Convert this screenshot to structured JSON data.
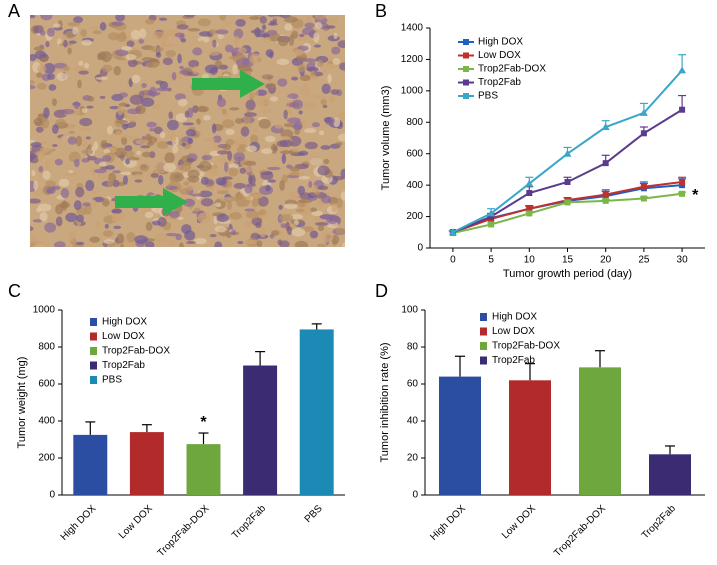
{
  "image_panel": {
    "panel": "A"
  },
  "chart_data": [
    {
      "panel": "B",
      "type": "line",
      "xlabel": "Tumor growth period (day)",
      "ylabel": "Tumor volume (mm3)",
      "x": [
        0,
        5,
        10,
        15,
        20,
        25,
        30
      ],
      "xlim": [
        -3,
        33
      ],
      "xticks": [
        0,
        5,
        10,
        15,
        20,
        25,
        30
      ],
      "ylim": [
        0,
        1400
      ],
      "yticks": [
        0,
        200,
        400,
        600,
        800,
        1000,
        1200,
        1400
      ],
      "annotation": "*",
      "series": [
        {
          "name": "High DOX",
          "color": "#1f5fbf",
          "marker": "square",
          "values": [
            100,
            190,
            250,
            300,
            330,
            380,
            400
          ],
          "errors": [
            10,
            20,
            20,
            20,
            40,
            40,
            40
          ]
        },
        {
          "name": "Low DOX",
          "color": "#c0302f",
          "marker": "square",
          "values": [
            100,
            185,
            250,
            305,
            340,
            390,
            420
          ],
          "errors": [
            10,
            15,
            15,
            15,
            20,
            20,
            30
          ]
        },
        {
          "name": "Trop2Fab-DOX",
          "color": "#7ab648",
          "marker": "square",
          "values": [
            95,
            150,
            220,
            290,
            300,
            315,
            345
          ],
          "errors": [
            10,
            10,
            10,
            10,
            10,
            10,
            10
          ]
        },
        {
          "name": "Trop2Fab",
          "color": "#5a3b8c",
          "marker": "square",
          "values": [
            100,
            200,
            350,
            420,
            540,
            730,
            880
          ],
          "errors": [
            10,
            20,
            40,
            30,
            50,
            40,
            90
          ]
        },
        {
          "name": "PBS",
          "color": "#3aa6c8",
          "marker": "triangle",
          "values": [
            100,
            220,
            410,
            600,
            770,
            860,
            1130
          ],
          "errors": [
            10,
            30,
            40,
            40,
            40,
            60,
            100
          ]
        }
      ]
    },
    {
      "panel": "C",
      "type": "bar",
      "ylabel": "Tumor  weight (mg)",
      "categories": [
        "High DOX",
        "Low DOX",
        "Trop2Fab-DOX",
        "Trop2Fab",
        "PBS"
      ],
      "values": [
        325,
        340,
        275,
        700,
        895
      ],
      "errors": [
        70,
        40,
        60,
        75,
        30
      ],
      "colors": [
        "#2b4ea2",
        "#b22a2a",
        "#6fa73f",
        "#3b2b72",
        "#1b8bb5"
      ],
      "ylim": [
        0,
        1000
      ],
      "yticks": [
        0,
        200,
        400,
        600,
        800,
        1000
      ],
      "annotation": "*"
    },
    {
      "panel": "D",
      "type": "bar",
      "ylabel": "Tumor inhibition rate (%)",
      "categories": [
        "High DOX",
        "Low DOX",
        "Trop2Fab-DOX",
        "Trop2Fab"
      ],
      "values": [
        64,
        62,
        69,
        22
      ],
      "errors": [
        11,
        9,
        9,
        4.5
      ],
      "colors": [
        "#2b4ea2",
        "#b22a2a",
        "#6fa73f",
        "#3b2b72"
      ],
      "ylim": [
        0,
        100
      ],
      "yticks": [
        0,
        20,
        40,
        60,
        80,
        100
      ]
    }
  ]
}
